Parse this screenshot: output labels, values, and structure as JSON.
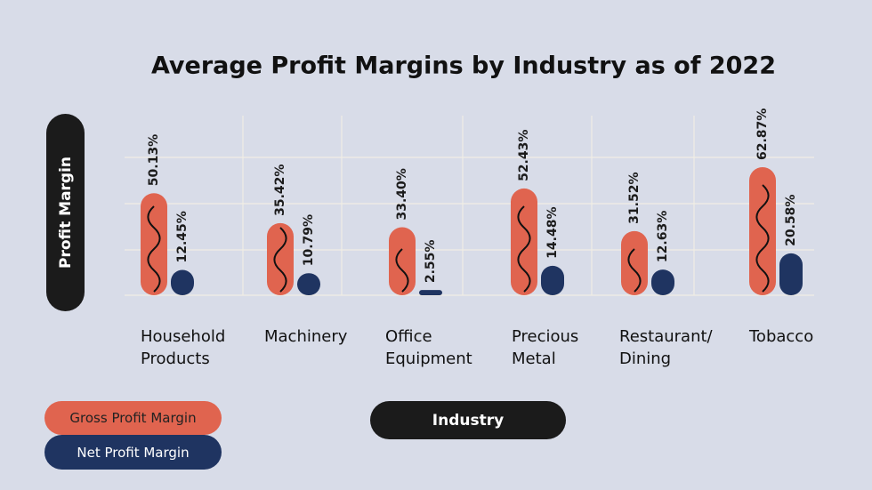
{
  "chart_data": {
    "type": "bar",
    "title": "Average Profit Margins by Industry as of 2022",
    "x_label": "Industry",
    "y_label": "Profit Margin",
    "categories": [
      "Household Products",
      "Machinery",
      "Office Equipment",
      "Precious Metal",
      "Restaurant/ Dining",
      "Tobacco"
    ],
    "series": [
      {
        "name": "Gross Profit Margin",
        "color": "#e0644f",
        "values": [
          50.13,
          35.42,
          33.4,
          52.43,
          31.52,
          62.87
        ],
        "value_labels": [
          "50.13%",
          "35.42%",
          "33.40%",
          "52.43%",
          "31.52%",
          "62.87%"
        ]
      },
      {
        "name": "Net Profit Margin",
        "color": "#1f3461",
        "values": [
          12.45,
          10.79,
          2.55,
          14.48,
          12.63,
          20.58
        ],
        "value_labels": [
          "12.45%",
          "10.79%",
          "2.55%",
          "14.48%",
          "12.63%",
          "20.58%"
        ]
      }
    ]
  }
}
